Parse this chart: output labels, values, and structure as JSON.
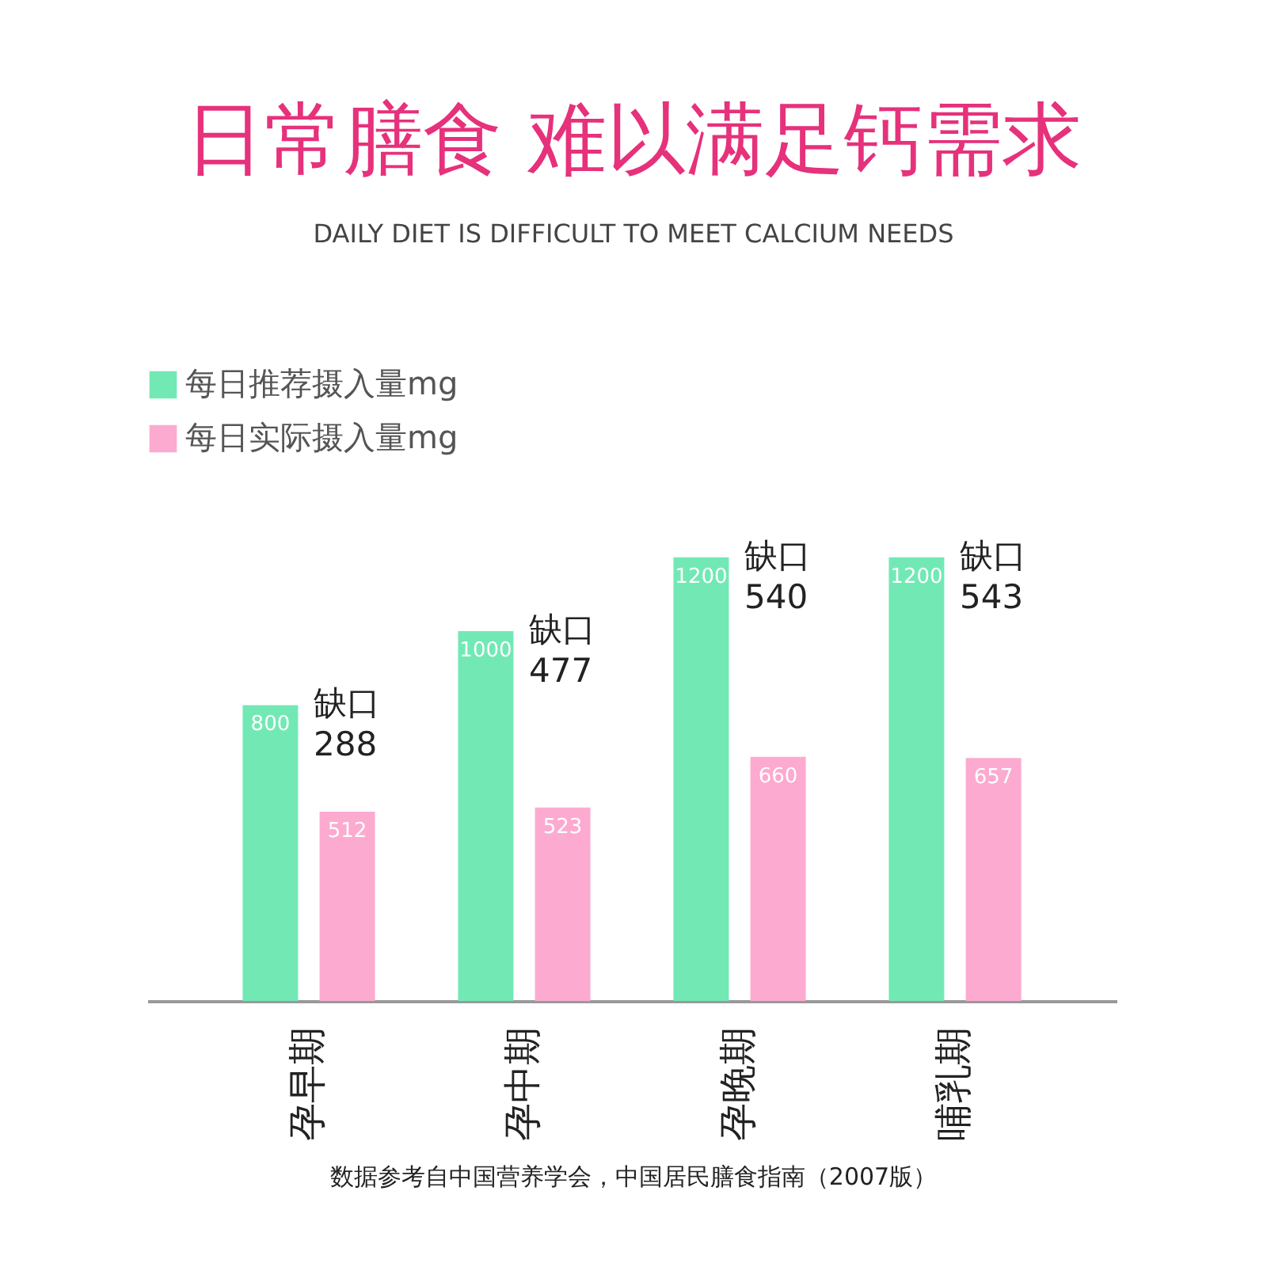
{
  "chart_data": {
    "type": "bar",
    "title": "日常膳食 难以满足钙需求",
    "subtitle": "DAILY DIET IS DIFFICULT TO MEET CALCIUM NEEDS",
    "categories": [
      "孕早期",
      "孕中期",
      "孕晚期",
      "哺乳期"
    ],
    "series": [
      {
        "name": "每日推荐摄入量mg",
        "color": "#72e9b5",
        "values": [
          800,
          1000,
          1200,
          1200
        ]
      },
      {
        "name": "每日实际摄入量mg",
        "color": "#fdaad0",
        "values": [
          512,
          523,
          660,
          657
        ]
      }
    ],
    "data_labels": true,
    "legend": "top left",
    "annotations": [
      "缺口 288",
      "缺口 477",
      "缺口 540",
      "缺口 543",
      "数据参考自中国营养学会，中国居民膳食指南（2007版）"
    ]
  }
}
